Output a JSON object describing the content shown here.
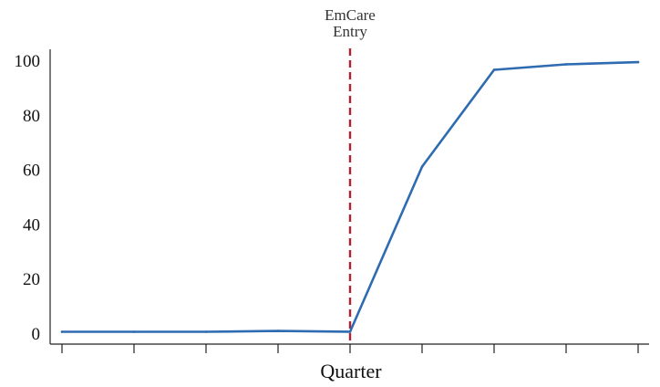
{
  "chart_data": {
    "type": "line",
    "xlabel": "Quarter",
    "ylabel": "",
    "x": [
      -4,
      -3,
      -2,
      -1,
      0,
      1,
      2,
      3,
      4
    ],
    "ylim": [
      0,
      100
    ],
    "yticks": [
      0,
      20,
      40,
      60,
      80,
      100
    ],
    "grid": false,
    "series": [
      {
        "name": "",
        "color": "#2e6bb0",
        "values": [
          0.5,
          0.5,
          0.5,
          0.8,
          0.5,
          61,
          96.5,
          98.5,
          99.3
        ]
      }
    ],
    "annotations": [
      {
        "type": "vline",
        "x": 0,
        "label_line1": "EmCare",
        "label_line2": "Entry",
        "color": "#b22234",
        "style": "dashed"
      }
    ]
  }
}
